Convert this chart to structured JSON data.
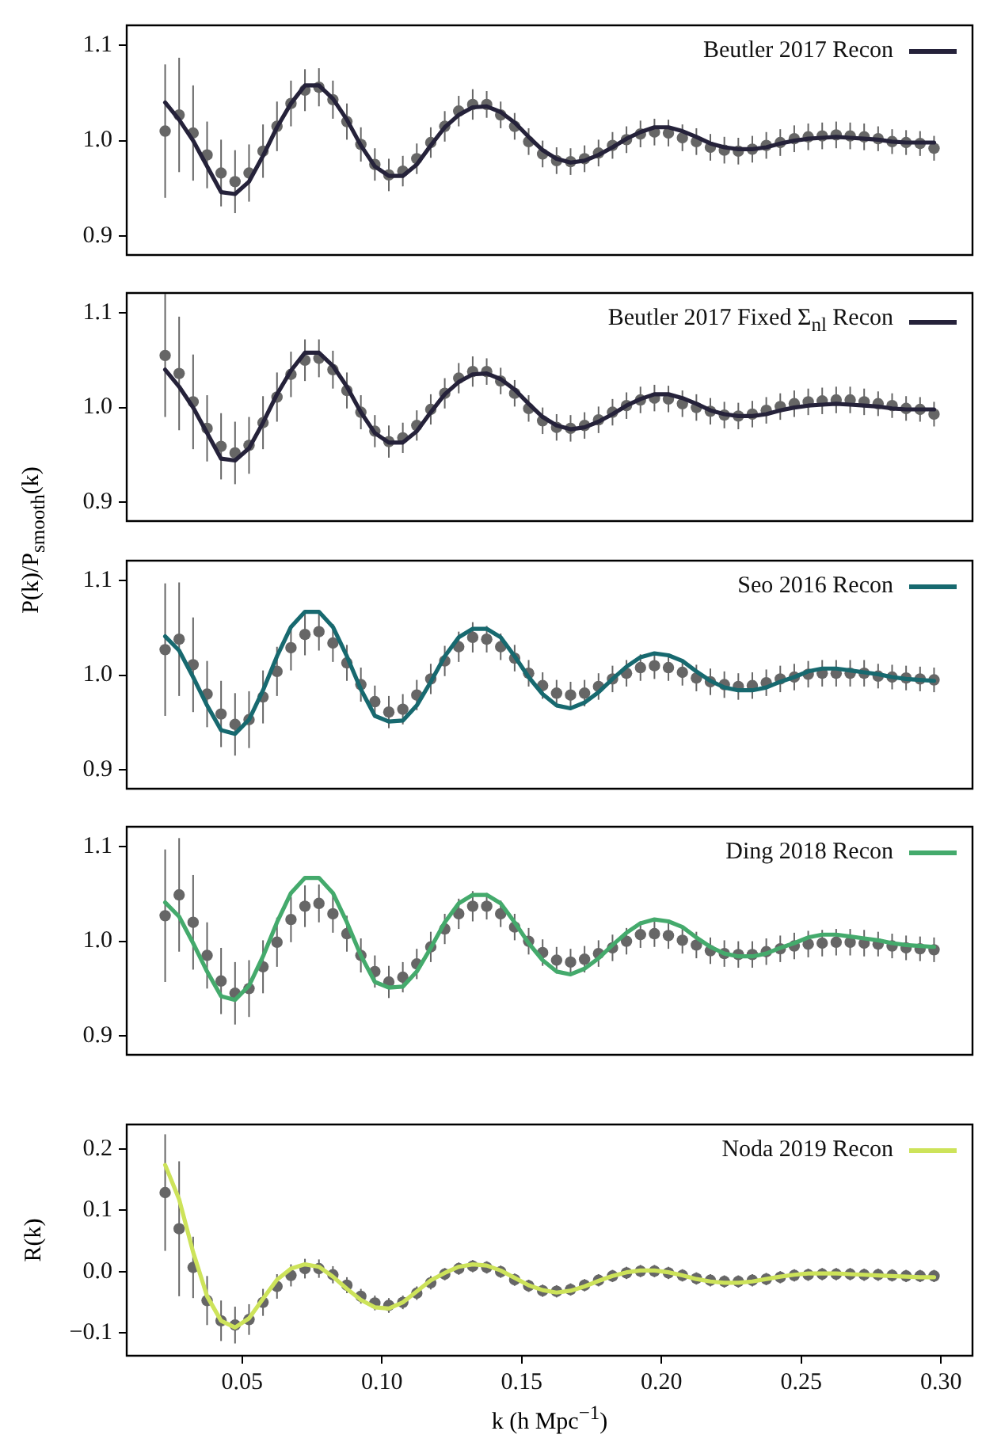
{
  "chart_data": [
    {
      "type": "scatter",
      "xlim": [
        0.00875,
        0.31125
      ],
      "ylim": [
        0.88,
        1.121
      ],
      "yticks": [
        0.9,
        {
          "value": 1,
          "label": "1.0"
        },
        1.1
      ],
      "tick_labels": "y",
      "legend": "top right",
      "x": [
        0.0225,
        0.0275,
        0.0325,
        0.0375,
        0.0425,
        0.0475,
        0.0525,
        0.0575,
        0.0625,
        0.0675,
        0.0725,
        0.0775,
        0.0825,
        0.0875,
        0.0925,
        0.0975,
        0.1025,
        0.1075,
        0.1125,
        0.1175,
        0.1225,
        0.1275,
        0.1325,
        0.1375,
        0.1425,
        0.1475,
        0.1525,
        0.1575,
        0.1625,
        0.1675,
        0.1725,
        0.1775,
        0.1825,
        0.1875,
        0.1925,
        0.1975,
        0.2025,
        0.2075,
        0.2125,
        0.2175,
        0.2225,
        0.2275,
        0.2325,
        0.2375,
        0.2425,
        0.2475,
        0.2525,
        0.2575,
        0.2625,
        0.2675,
        0.2725,
        0.2775,
        0.2825,
        0.2875,
        0.2925,
        0.2975
      ],
      "series": [
        {
          "color": "#666666",
          "marker": "circle",
          "values": [
            1.01,
            1.027,
            1.008,
            0.985,
            0.966,
            0.957,
            0.966,
            0.989,
            1.015,
            1.039,
            1.053,
            1.056,
            1.043,
            1.02,
            0.996,
            0.975,
            0.964,
            0.968,
            0.981,
            0.998,
            1.015,
            1.031,
            1.038,
            1.038,
            1.027,
            1.015,
            0.999,
            0.986,
            0.979,
            0.978,
            0.981,
            0.987,
            0.995,
            1.001,
            1.007,
            1.009,
            1.008,
            1.003,
            0.999,
            0.993,
            0.99,
            0.989,
            0.991,
            0.995,
            0.998,
            1.002,
            1.004,
            1.005,
            1.006,
            1.005,
            1.004,
            1.002,
            0.999,
            0.998,
            0.997,
            0.992
          ],
          "errors": [
            0.07,
            0.06,
            0.05,
            0.035,
            0.035,
            0.033,
            0.03,
            0.028,
            0.026,
            0.024,
            0.022,
            0.02,
            0.02,
            0.019,
            0.018,
            0.017,
            0.017,
            0.016,
            0.016,
            0.016,
            0.016,
            0.016,
            0.016,
            0.014,
            0.014,
            0.014,
            0.014,
            0.014,
            0.014,
            0.014,
            0.014,
            0.014,
            0.014,
            0.014,
            0.014,
            0.014,
            0.014,
            0.014,
            0.014,
            0.014,
            0.014,
            0.014,
            0.014,
            0.014,
            0.014,
            0.014,
            0.014,
            0.014,
            0.014,
            0.014,
            0.014,
            0.013,
            0.013,
            0.013,
            0.013,
            0.013
          ]
        },
        {
          "type": "line",
          "name": "Beutler 2017 Recon",
          "color": "#25223a",
          "marker": "none",
          "values": [
            1.04,
            1.022,
            1.0,
            0.973,
            0.946,
            0.944,
            0.957,
            0.984,
            1.014,
            1.039,
            1.058,
            1.058,
            1.044,
            1.022,
            0.995,
            0.973,
            0.963,
            0.963,
            0.975,
            0.995,
            1.014,
            1.027,
            1.035,
            1.036,
            1.03,
            1.019,
            1.004,
            0.99,
            0.981,
            0.977,
            0.979,
            0.985,
            0.993,
            1.002,
            1.009,
            1.014,
            1.014,
            1.01,
            1.004,
            0.997,
            0.993,
            0.991,
            0.991,
            0.993,
            0.997,
            1.0,
            1.002,
            1.003,
            1.004,
            1.003,
            1.002,
            1.001,
            0.999,
            0.998,
            0.998,
            0.998
          ]
        }
      ]
    },
    {
      "type": "scatter",
      "xlim": [
        0.00875,
        0.31125
      ],
      "ylim": [
        0.88,
        1.121
      ],
      "yticks": [
        0.9,
        {
          "value": 1,
          "label": "1.0"
        },
        1.1
      ],
      "tick_labels": "y",
      "legend": "top right",
      "x": [
        0.0225,
        0.0275,
        0.0325,
        0.0375,
        0.0425,
        0.0475,
        0.0525,
        0.0575,
        0.0625,
        0.0675,
        0.0725,
        0.0775,
        0.0825,
        0.0875,
        0.0925,
        0.0975,
        0.1025,
        0.1075,
        0.1125,
        0.1175,
        0.1225,
        0.1275,
        0.1325,
        0.1375,
        0.1425,
        0.1475,
        0.1525,
        0.1575,
        0.1625,
        0.1675,
        0.1725,
        0.1775,
        0.1825,
        0.1875,
        0.1925,
        0.1975,
        0.2025,
        0.2075,
        0.2125,
        0.2175,
        0.2225,
        0.2275,
        0.2325,
        0.2375,
        0.2425,
        0.2475,
        0.2525,
        0.2575,
        0.2625,
        0.2675,
        0.2725,
        0.2775,
        0.2825,
        0.2875,
        0.2925,
        0.2975
      ],
      "series": [
        {
          "color": "#666666",
          "marker": "circle",
          "values": [
            1.055,
            1.036,
            1.006,
            0.978,
            0.959,
            0.952,
            0.96,
            0.984,
            1.011,
            1.035,
            1.05,
            1.052,
            1.04,
            1.018,
            0.995,
            0.975,
            0.964,
            0.968,
            0.981,
            0.998,
            1.015,
            1.031,
            1.038,
            1.038,
            1.028,
            1.015,
            0.999,
            0.986,
            0.979,
            0.978,
            0.981,
            0.987,
            0.995,
            1.002,
            1.008,
            1.01,
            1.009,
            1.004,
            1.0,
            0.996,
            0.992,
            0.991,
            0.993,
            0.997,
            1.001,
            1.004,
            1.006,
            1.007,
            1.008,
            1.008,
            1.006,
            1.004,
            1.002,
            0.999,
            0.998,
            0.993
          ],
          "errors": [
            0.065,
            0.06,
            0.05,
            0.035,
            0.035,
            0.033,
            0.03,
            0.028,
            0.026,
            0.024,
            0.022,
            0.02,
            0.02,
            0.019,
            0.018,
            0.017,
            0.017,
            0.016,
            0.016,
            0.016,
            0.016,
            0.016,
            0.016,
            0.014,
            0.014,
            0.014,
            0.014,
            0.014,
            0.014,
            0.014,
            0.014,
            0.014,
            0.014,
            0.014,
            0.014,
            0.014,
            0.014,
            0.014,
            0.014,
            0.014,
            0.014,
            0.014,
            0.014,
            0.014,
            0.014,
            0.014,
            0.014,
            0.014,
            0.014,
            0.014,
            0.014,
            0.013,
            0.013,
            0.013,
            0.013,
            0.013
          ]
        },
        {
          "type": "line",
          "name": "Beutler 2017 Fixed Σ$_{nl}$ Recon",
          "color": "#25223a",
          "marker": "none",
          "values": [
            1.04,
            1.022,
            1.0,
            0.973,
            0.946,
            0.944,
            0.957,
            0.984,
            1.014,
            1.039,
            1.058,
            1.058,
            1.044,
            1.022,
            0.995,
            0.973,
            0.963,
            0.963,
            0.975,
            0.995,
            1.014,
            1.027,
            1.035,
            1.036,
            1.03,
            1.019,
            1.004,
            0.99,
            0.981,
            0.977,
            0.979,
            0.985,
            0.993,
            1.002,
            1.009,
            1.014,
            1.014,
            1.01,
            1.004,
            0.997,
            0.993,
            0.991,
            0.991,
            0.993,
            0.997,
            1.0,
            1.002,
            1.003,
            1.004,
            1.003,
            1.002,
            1.001,
            0.999,
            0.998,
            0.998,
            0.998
          ]
        }
      ]
    },
    {
      "type": "scatter",
      "ylabel": "P(k)/P$_{smooth}$(k)",
      "xlim": [
        0.00875,
        0.31125
      ],
      "ylim": [
        0.88,
        1.121
      ],
      "yticks": [
        0.9,
        {
          "value": 1,
          "label": "1.0"
        },
        1.1
      ],
      "tick_labels": "y",
      "legend": "top right",
      "x": [
        0.0225,
        0.0275,
        0.0325,
        0.0375,
        0.0425,
        0.0475,
        0.0525,
        0.0575,
        0.0625,
        0.0675,
        0.0725,
        0.0775,
        0.0825,
        0.0875,
        0.0925,
        0.0975,
        0.1025,
        0.1075,
        0.1125,
        0.1175,
        0.1225,
        0.1275,
        0.1325,
        0.1375,
        0.1425,
        0.1475,
        0.1525,
        0.1575,
        0.1625,
        0.1675,
        0.1725,
        0.1775,
        0.1825,
        0.1875,
        0.1925,
        0.1975,
        0.2025,
        0.2075,
        0.2125,
        0.2175,
        0.2225,
        0.2275,
        0.2325,
        0.2375,
        0.2425,
        0.2475,
        0.2525,
        0.2575,
        0.2625,
        0.2675,
        0.2725,
        0.2775,
        0.2825,
        0.2875,
        0.2925,
        0.2975
      ],
      "series": [
        {
          "color": "#666666",
          "marker": "circle",
          "values": [
            1.027,
            1.038,
            1.011,
            0.98,
            0.959,
            0.948,
            0.953,
            0.977,
            1.004,
            1.029,
            1.043,
            1.046,
            1.034,
            1.013,
            0.99,
            0.972,
            0.961,
            0.964,
            0.979,
            0.996,
            1.015,
            1.03,
            1.04,
            1.038,
            1.03,
            1.018,
            1.002,
            0.989,
            0.981,
            0.979,
            0.981,
            0.988,
            0.996,
            1.002,
            1.008,
            1.01,
            1.008,
            1.003,
            0.997,
            0.993,
            0.99,
            0.988,
            0.989,
            0.992,
            0.996,
            0.998,
            1.001,
            1.002,
            1.002,
            1.002,
            1.002,
            0.999,
            0.998,
            0.997,
            0.996,
            0.995
          ],
          "errors": [
            0.07,
            0.06,
            0.05,
            0.035,
            0.035,
            0.033,
            0.03,
            0.028,
            0.026,
            0.024,
            0.022,
            0.02,
            0.02,
            0.019,
            0.018,
            0.017,
            0.017,
            0.016,
            0.016,
            0.016,
            0.016,
            0.016,
            0.016,
            0.014,
            0.014,
            0.014,
            0.014,
            0.014,
            0.014,
            0.014,
            0.014,
            0.014,
            0.014,
            0.014,
            0.014,
            0.014,
            0.014,
            0.014,
            0.014,
            0.014,
            0.014,
            0.014,
            0.014,
            0.014,
            0.014,
            0.014,
            0.014,
            0.014,
            0.014,
            0.014,
            0.014,
            0.013,
            0.013,
            0.013,
            0.013,
            0.013
          ]
        },
        {
          "type": "line",
          "name": "Seo 2016 Recon",
          "color": "#17696f",
          "marker": "none",
          "values": [
            1.041,
            1.026,
            0.998,
            0.968,
            0.942,
            0.938,
            0.953,
            0.984,
            1.02,
            1.051,
            1.067,
            1.067,
            1.051,
            1.02,
            0.985,
            0.957,
            0.951,
            0.952,
            0.968,
            0.993,
            1.02,
            1.04,
            1.049,
            1.049,
            1.04,
            1.02,
            0.998,
            0.98,
            0.968,
            0.965,
            0.971,
            0.982,
            0.996,
            1.009,
            1.019,
            1.023,
            1.021,
            1.015,
            1.004,
            0.994,
            0.987,
            0.984,
            0.984,
            0.987,
            0.993,
            0.998,
            1.004,
            1.007,
            1.007,
            1.005,
            1.003,
            1.001,
            0.998,
            0.996,
            0.995,
            0.994
          ]
        }
      ]
    },
    {
      "type": "scatter",
      "xlim": [
        0.00875,
        0.31125
      ],
      "ylim": [
        0.88,
        1.121
      ],
      "yticks": [
        0.9,
        {
          "value": 1,
          "label": "1.0"
        },
        1.1
      ],
      "tick_labels": "y",
      "legend": "top right",
      "x": [
        0.0225,
        0.0275,
        0.0325,
        0.0375,
        0.0425,
        0.0475,
        0.0525,
        0.0575,
        0.0625,
        0.0675,
        0.0725,
        0.0775,
        0.0825,
        0.0875,
        0.0925,
        0.0975,
        0.1025,
        0.1075,
        0.1125,
        0.1175,
        0.1225,
        0.1275,
        0.1325,
        0.1375,
        0.1425,
        0.1475,
        0.1525,
        0.1575,
        0.1625,
        0.1675,
        0.1725,
        0.1775,
        0.1825,
        0.1875,
        0.1925,
        0.1975,
        0.2025,
        0.2075,
        0.2125,
        0.2175,
        0.2225,
        0.2275,
        0.2325,
        0.2375,
        0.2425,
        0.2475,
        0.2525,
        0.2575,
        0.2625,
        0.2675,
        0.2725,
        0.2775,
        0.2825,
        0.2875,
        0.2925,
        0.2975
      ],
      "series": [
        {
          "color": "#666666",
          "marker": "circle",
          "values": [
            1.027,
            1.049,
            1.02,
            0.985,
            0.958,
            0.945,
            0.95,
            0.973,
            0.999,
            1.023,
            1.037,
            1.04,
            1.029,
            1.008,
            0.985,
            0.968,
            0.957,
            0.962,
            0.976,
            0.994,
            1.013,
            1.029,
            1.037,
            1.037,
            1.029,
            1.015,
            1.0,
            0.988,
            0.98,
            0.978,
            0.981,
            0.987,
            0.993,
            1.0,
            1.007,
            1.008,
            1.006,
            1.001,
            0.996,
            0.99,
            0.987,
            0.986,
            0.986,
            0.989,
            0.992,
            0.995,
            0.997,
            0.998,
            0.999,
            0.999,
            0.998,
            0.997,
            0.995,
            0.993,
            0.992,
            0.991
          ],
          "errors": [
            0.07,
            0.06,
            0.05,
            0.035,
            0.035,
            0.033,
            0.03,
            0.028,
            0.026,
            0.024,
            0.022,
            0.02,
            0.02,
            0.019,
            0.018,
            0.017,
            0.017,
            0.016,
            0.016,
            0.016,
            0.016,
            0.016,
            0.016,
            0.014,
            0.014,
            0.014,
            0.014,
            0.014,
            0.014,
            0.014,
            0.014,
            0.014,
            0.014,
            0.014,
            0.014,
            0.014,
            0.014,
            0.014,
            0.014,
            0.014,
            0.014,
            0.014,
            0.014,
            0.014,
            0.014,
            0.014,
            0.014,
            0.014,
            0.014,
            0.014,
            0.014,
            0.013,
            0.013,
            0.013,
            0.013,
            0.013
          ]
        },
        {
          "type": "line",
          "name": "Ding 2018 Recon",
          "color": "#44aa6c",
          "marker": "none",
          "values": [
            1.041,
            1.026,
            0.998,
            0.968,
            0.942,
            0.938,
            0.953,
            0.984,
            1.02,
            1.051,
            1.067,
            1.067,
            1.051,
            1.02,
            0.985,
            0.957,
            0.951,
            0.952,
            0.968,
            0.993,
            1.02,
            1.04,
            1.049,
            1.049,
            1.04,
            1.02,
            0.998,
            0.98,
            0.968,
            0.965,
            0.971,
            0.982,
            0.996,
            1.009,
            1.019,
            1.023,
            1.021,
            1.015,
            1.004,
            0.994,
            0.987,
            0.984,
            0.984,
            0.987,
            0.993,
            0.998,
            1.004,
            1.007,
            1.007,
            1.005,
            1.003,
            1.001,
            0.998,
            0.996,
            0.995,
            0.994
          ]
        }
      ]
    },
    {
      "type": "scatter",
      "xlabel": "k (h Mpc$^{−1}$)",
      "ylabel": "R(k)",
      "xlim": [
        0.00875,
        0.31125
      ],
      "xticks": [
        0.05,
        {
          "value": 0.1,
          "label": "0.10"
        },
        0.15,
        {
          "value": 0.2,
          "label": "0.20"
        },
        0.25,
        {
          "value": 0.3,
          "label": "0.30"
        }
      ],
      "ylim": [
        -0.137,
        0.24
      ],
      "yticks": [
        {
          "value": -0.1,
          "label": "−0.1"
        },
        {
          "value": 0,
          "label": "0.0"
        },
        0.1,
        0.2
      ],
      "legend": "top right",
      "x": [
        0.0225,
        0.0275,
        0.0325,
        0.0375,
        0.0425,
        0.0475,
        0.0525,
        0.0575,
        0.0625,
        0.0675,
        0.0725,
        0.0775,
        0.0825,
        0.0875,
        0.0925,
        0.0975,
        0.1025,
        0.1075,
        0.1125,
        0.1175,
        0.1225,
        0.1275,
        0.1325,
        0.1375,
        0.1425,
        0.1475,
        0.1525,
        0.1575,
        0.1625,
        0.1675,
        0.1725,
        0.1775,
        0.1825,
        0.1875,
        0.1925,
        0.1975,
        0.2025,
        0.2075,
        0.2125,
        0.2175,
        0.2225,
        0.2275,
        0.2325,
        0.2375,
        0.2425,
        0.2475,
        0.2525,
        0.2575,
        0.2625,
        0.2675,
        0.2725,
        0.2775,
        0.2825,
        0.2875,
        0.2925,
        0.2975
      ],
      "series": [
        {
          "color": "#666666",
          "marker": "circle",
          "values": [
            0.129,
            0.07,
            0.007,
            -0.047,
            -0.08,
            -0.087,
            -0.078,
            -0.05,
            -0.024,
            -0.006,
            0.005,
            0.005,
            -0.005,
            -0.022,
            -0.04,
            -0.051,
            -0.055,
            -0.05,
            -0.035,
            -0.018,
            -0.004,
            0.005,
            0.009,
            0.007,
            0.0,
            -0.013,
            -0.023,
            -0.031,
            -0.032,
            -0.029,
            -0.022,
            -0.014,
            -0.007,
            -0.002,
            0.001,
            0.001,
            -0.002,
            -0.006,
            -0.011,
            -0.014,
            -0.016,
            -0.016,
            -0.014,
            -0.012,
            -0.009,
            -0.006,
            -0.005,
            -0.004,
            -0.004,
            -0.004,
            -0.005,
            -0.005,
            -0.006,
            -0.007,
            -0.007,
            -0.007
          ],
          "errors": [
            0.095,
            0.11,
            0.05,
            0.04,
            0.033,
            0.03,
            0.025,
            0.022,
            0.02,
            0.018,
            0.016,
            0.015,
            0.014,
            0.013,
            0.012,
            0.012,
            0.012,
            0.011,
            0.011,
            0.011,
            0.01,
            0.01,
            0.01,
            0.01,
            0.01,
            0.01,
            0.01,
            0.01,
            0.01,
            0.01,
            0.01,
            0.01,
            0.01,
            0.01,
            0.01,
            0.01,
            0.01,
            0.01,
            0.01,
            0.01,
            0.01,
            0.01,
            0.01,
            0.01,
            0.01,
            0.01,
            0.01,
            0.01,
            0.01,
            0.01,
            0.01,
            0.01,
            0.01,
            0.01,
            0.01,
            0.01
          ]
        },
        {
          "type": "line",
          "name": "Noda 2019 Recon",
          "color": "#cde35a",
          "marker": "none",
          "values": [
            0.174,
            0.118,
            0.032,
            -0.04,
            -0.08,
            -0.091,
            -0.076,
            -0.044,
            -0.013,
            0.005,
            0.012,
            0.008,
            -0.008,
            -0.028,
            -0.046,
            -0.058,
            -0.06,
            -0.05,
            -0.032,
            -0.014,
            -0.002,
            0.008,
            0.012,
            0.01,
            0.002,
            -0.01,
            -0.022,
            -0.03,
            -0.034,
            -0.031,
            -0.024,
            -0.015,
            -0.007,
            -0.001,
            0.002,
            0.002,
            -0.001,
            -0.006,
            -0.012,
            -0.016,
            -0.018,
            -0.018,
            -0.016,
            -0.012,
            -0.008,
            -0.005,
            -0.003,
            -0.003,
            -0.003,
            -0.004,
            -0.005,
            -0.006,
            -0.007,
            -0.008,
            -0.009,
            -0.009
          ]
        }
      ]
    }
  ]
}
